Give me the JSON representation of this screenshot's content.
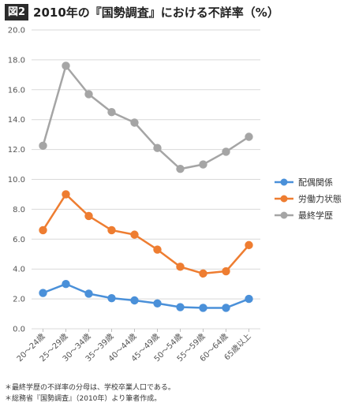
{
  "header": {
    "badge": "図2",
    "title": "2010年の『国勢調査』における不詳率（%）"
  },
  "notes": [
    "＊最終学歴の不詳率の分母は、学校卒業人口である。",
    "＊総務省『国勢調査』（2010年）より筆者作成。"
  ],
  "chart_data": {
    "type": "line",
    "title": "2010年の『国勢調査』における不詳率（%）",
    "xlabel": "",
    "ylabel": "",
    "ylim": [
      0,
      20
    ],
    "yticks": [
      "0.0",
      "2.0",
      "4.0",
      "6.0",
      "8.0",
      "10.0",
      "12.0",
      "14.0",
      "16.0",
      "18.0",
      "20.0"
    ],
    "grid": true,
    "legend_position": "right",
    "categories": [
      "20～24歳",
      "25～29歳",
      "30～34歳",
      "35～39歳",
      "40～44歳",
      "45～49歳",
      "50～54歳",
      "55～59歳",
      "60～64歳",
      "65歳以上"
    ],
    "series": [
      {
        "name": "配偶関係",
        "color": "#4a90d9",
        "values": [
          2.4,
          3.0,
          2.35,
          2.05,
          1.9,
          1.7,
          1.45,
          1.4,
          1.4,
          2.0
        ]
      },
      {
        "name": "労働力状態",
        "color": "#ee7d31",
        "values": [
          6.6,
          9.0,
          7.55,
          6.6,
          6.3,
          5.3,
          4.15,
          3.7,
          3.85,
          5.6
        ]
      },
      {
        "name": "最終学歴",
        "color": "#a5a5a5",
        "values": [
          12.25,
          17.6,
          15.7,
          14.5,
          13.8,
          12.1,
          10.7,
          11.0,
          11.85,
          12.85
        ]
      }
    ]
  }
}
